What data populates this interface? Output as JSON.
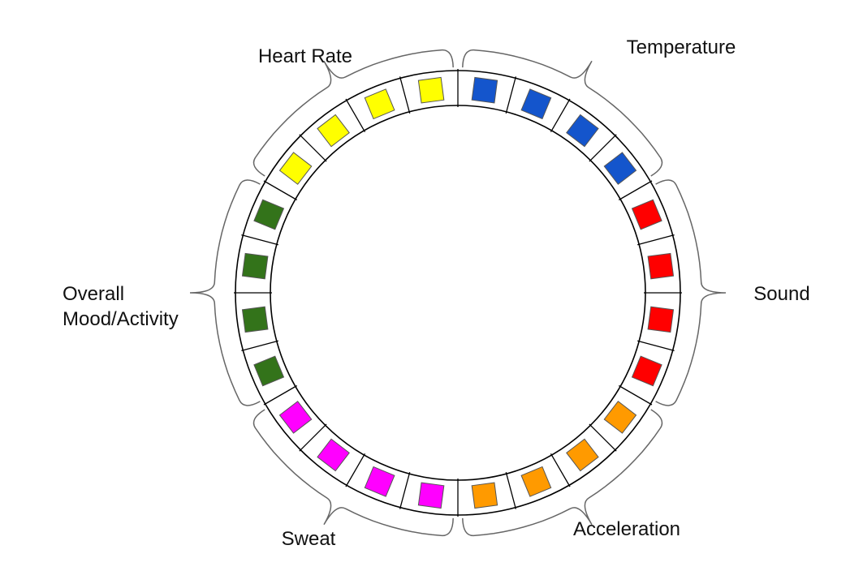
{
  "groups": [
    {
      "id": "heart-rate",
      "label_lines": [
        "Heart Rate"
      ],
      "color": "#FFFF00",
      "count": 4
    },
    {
      "id": "temperature",
      "label_lines": [
        "Temperature"
      ],
      "color": "#1455CC",
      "count": 4
    },
    {
      "id": "sound",
      "label_lines": [
        "Sound"
      ],
      "color": "#FF0000",
      "count": 4
    },
    {
      "id": "acceleration",
      "label_lines": [
        "Acceleration"
      ],
      "color": "#FF9A00",
      "count": 4
    },
    {
      "id": "sweat",
      "label_lines": [
        "Sweat"
      ],
      "color": "#FF00FF",
      "count": 4
    },
    {
      "id": "overall-mood-activity",
      "label_lines": [
        "Overall",
        "Mood/Activity"
      ],
      "color": "#33731A",
      "count": 4
    }
  ]
}
